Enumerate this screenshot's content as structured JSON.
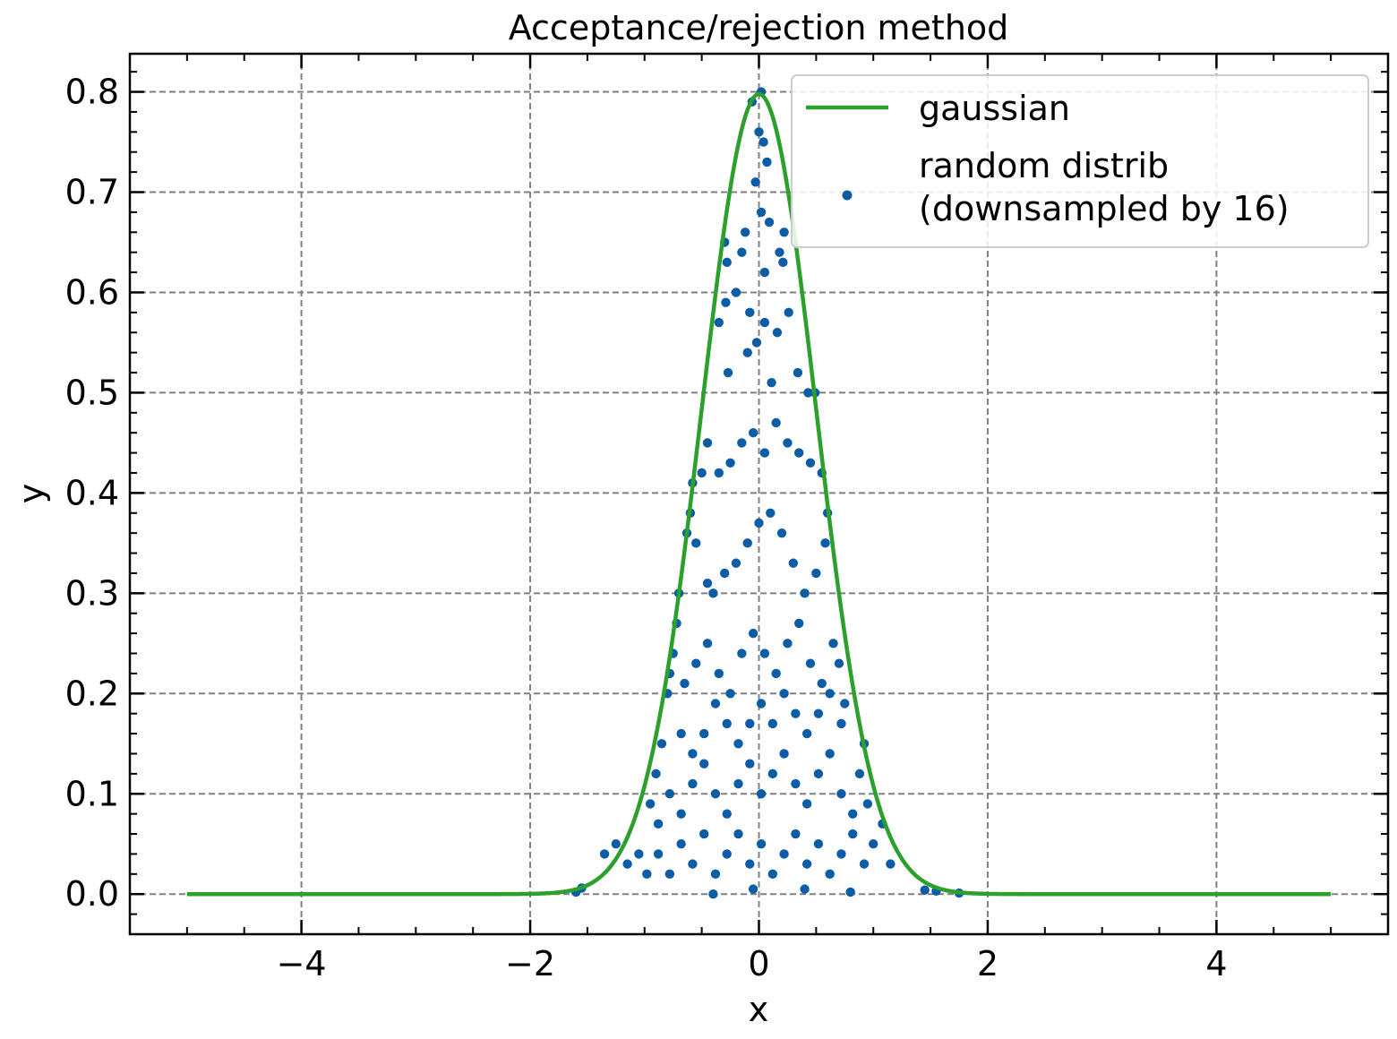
{
  "chart_data": {
    "type": "scatter",
    "title": "Acceptance/rejection method",
    "xlabel": "x",
    "ylabel": "y",
    "xlim": [
      -5.5,
      5.5
    ],
    "ylim": [
      -0.04,
      0.838
    ],
    "grid": true,
    "legend_position": "top-right",
    "x_ticks": [
      -4,
      -2,
      0,
      2,
      4
    ],
    "x_tick_labels": [
      "−4",
      "−2",
      "0",
      "2",
      "4"
    ],
    "y_ticks": [
      0.0,
      0.1,
      0.2,
      0.3,
      0.4,
      0.5,
      0.6,
      0.7,
      0.8
    ],
    "y_tick_labels": [
      "0.0",
      "0.1",
      "0.2",
      "0.3",
      "0.4",
      "0.5",
      "0.6",
      "0.7",
      "0.8"
    ],
    "series": [
      {
        "name": "gaussian",
        "kind": "line",
        "color": "#2ca02c",
        "function": "gaussian",
        "mean": 0,
        "sigma": 0.5,
        "x_range": [
          -5,
          5
        ]
      },
      {
        "name": "random distrib\n(downsampled by 16)",
        "kind": "scatter",
        "color": "#0c5da5",
        "points": [
          [
            -0.06,
            0.79
          ],
          [
            0.02,
            0.8
          ],
          [
            0.07,
            0.73
          ],
          [
            -0.03,
            0.71
          ],
          [
            0.0,
            0.76
          ],
          [
            0.04,
            0.75
          ],
          [
            -0.3,
            0.65
          ],
          [
            -0.28,
            0.63
          ],
          [
            -0.15,
            0.64
          ],
          [
            -0.12,
            0.66
          ],
          [
            0.02,
            0.68
          ],
          [
            0.05,
            0.62
          ],
          [
            0.09,
            0.67
          ],
          [
            0.18,
            0.64
          ],
          [
            0.21,
            0.63
          ],
          [
            0.22,
            0.66
          ],
          [
            -0.2,
            0.6
          ],
          [
            -0.29,
            0.59
          ],
          [
            -0.35,
            0.57
          ],
          [
            -0.27,
            0.52
          ],
          [
            -0.08,
            0.58
          ],
          [
            -0.02,
            0.55
          ],
          [
            0.05,
            0.57
          ],
          [
            0.16,
            0.56
          ],
          [
            0.26,
            0.58
          ],
          [
            0.34,
            0.52
          ],
          [
            0.43,
            0.5
          ],
          [
            0.49,
            0.5
          ],
          [
            -0.1,
            0.54
          ],
          [
            0.11,
            0.51
          ],
          [
            -0.45,
            0.45
          ],
          [
            -0.5,
            0.42
          ],
          [
            -0.58,
            0.41
          ],
          [
            -0.6,
            0.38
          ],
          [
            -0.63,
            0.36
          ],
          [
            -0.55,
            0.35
          ],
          [
            -0.45,
            0.31
          ],
          [
            -0.4,
            0.3
          ],
          [
            -0.35,
            0.42
          ],
          [
            -0.25,
            0.43
          ],
          [
            -0.15,
            0.45
          ],
          [
            -0.05,
            0.46
          ],
          [
            0.05,
            0.44
          ],
          [
            0.15,
            0.47
          ],
          [
            0.25,
            0.45
          ],
          [
            0.35,
            0.44
          ],
          [
            0.45,
            0.43
          ],
          [
            0.55,
            0.42
          ],
          [
            0.6,
            0.38
          ],
          [
            0.58,
            0.35
          ],
          [
            0.5,
            0.32
          ],
          [
            0.4,
            0.3
          ],
          [
            0.3,
            0.33
          ],
          [
            0.2,
            0.36
          ],
          [
            0.1,
            0.38
          ],
          [
            0.0,
            0.37
          ],
          [
            -0.1,
            0.35
          ],
          [
            -0.2,
            0.33
          ],
          [
            -0.3,
            0.32
          ],
          [
            -0.7,
            0.3
          ],
          [
            -0.72,
            0.27
          ],
          [
            -0.75,
            0.24
          ],
          [
            -0.78,
            0.22
          ],
          [
            -0.8,
            0.2
          ],
          [
            -0.65,
            0.21
          ],
          [
            -0.55,
            0.23
          ],
          [
            -0.45,
            0.25
          ],
          [
            -0.35,
            0.22
          ],
          [
            -0.25,
            0.2
          ],
          [
            -0.15,
            0.24
          ],
          [
            -0.05,
            0.26
          ],
          [
            0.05,
            0.24
          ],
          [
            0.15,
            0.22
          ],
          [
            0.25,
            0.25
          ],
          [
            0.35,
            0.27
          ],
          [
            0.45,
            0.23
          ],
          [
            0.55,
            0.21
          ],
          [
            0.65,
            0.25
          ],
          [
            0.7,
            0.23
          ],
          [
            0.75,
            0.19
          ],
          [
            0.72,
            0.17
          ],
          [
            0.62,
            0.2
          ],
          [
            0.52,
            0.18
          ],
          [
            0.42,
            0.16
          ],
          [
            0.32,
            0.18
          ],
          [
            0.22,
            0.2
          ],
          [
            0.12,
            0.17
          ],
          [
            0.02,
            0.19
          ],
          [
            -0.08,
            0.17
          ],
          [
            -0.18,
            0.15
          ],
          [
            -0.28,
            0.17
          ],
          [
            -0.38,
            0.19
          ],
          [
            -0.48,
            0.16
          ],
          [
            -0.58,
            0.14
          ],
          [
            -0.68,
            0.16
          ],
          [
            -0.85,
            0.15
          ],
          [
            -0.9,
            0.12
          ],
          [
            -0.95,
            0.09
          ],
          [
            -0.88,
            0.07
          ],
          [
            -0.78,
            0.1
          ],
          [
            -0.68,
            0.08
          ],
          [
            -0.58,
            0.11
          ],
          [
            -0.48,
            0.13
          ],
          [
            -0.38,
            0.1
          ],
          [
            -0.28,
            0.08
          ],
          [
            -0.18,
            0.11
          ],
          [
            -0.08,
            0.13
          ],
          [
            0.02,
            0.1
          ],
          [
            0.12,
            0.12
          ],
          [
            0.22,
            0.14
          ],
          [
            0.32,
            0.11
          ],
          [
            0.42,
            0.09
          ],
          [
            0.52,
            0.12
          ],
          [
            0.62,
            0.14
          ],
          [
            0.72,
            0.1
          ],
          [
            0.82,
            0.08
          ],
          [
            0.88,
            0.12
          ],
          [
            0.92,
            0.15
          ],
          [
            0.95,
            0.09
          ],
          [
            -1.05,
            0.04
          ],
          [
            -1.15,
            0.03
          ],
          [
            -1.25,
            0.05
          ],
          [
            -1.35,
            0.04
          ],
          [
            -0.98,
            0.02
          ],
          [
            -0.88,
            0.04
          ],
          [
            -0.78,
            0.02
          ],
          [
            -0.68,
            0.05
          ],
          [
            -0.58,
            0.03
          ],
          [
            -0.48,
            0.06
          ],
          [
            -0.38,
            0.02
          ],
          [
            -0.28,
            0.04
          ],
          [
            -0.18,
            0.06
          ],
          [
            -0.08,
            0.03
          ],
          [
            0.02,
            0.05
          ],
          [
            0.12,
            0.02
          ],
          [
            0.22,
            0.04
          ],
          [
            0.32,
            0.06
          ],
          [
            0.42,
            0.03
          ],
          [
            0.52,
            0.05
          ],
          [
            0.62,
            0.02
          ],
          [
            0.72,
            0.04
          ],
          [
            0.82,
            0.06
          ],
          [
            0.92,
            0.03
          ],
          [
            1.0,
            0.05
          ],
          [
            1.08,
            0.07
          ],
          [
            1.15,
            0.03
          ],
          [
            -1.55,
            0.006
          ],
          [
            -1.6,
            0.002
          ],
          [
            1.45,
            0.004
          ],
          [
            1.55,
            0.003
          ],
          [
            1.75,
            0.001
          ],
          [
            -0.4,
            0.0
          ],
          [
            -0.05,
            0.005
          ],
          [
            0.4,
            0.005
          ],
          [
            0.8,
            0.002
          ]
        ]
      }
    ]
  }
}
